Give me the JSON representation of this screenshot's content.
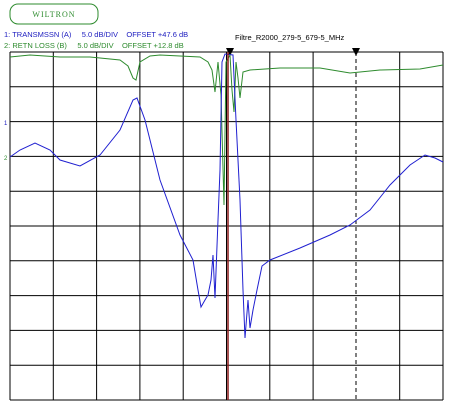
{
  "header": {
    "logo": "WILTRON",
    "trace1": "1: TRANSMSSN (A)     5.0 dB/DIV    OFFSET +47.6 dB",
    "trace2": "2: RETN LOSS (B)     5.0 dB/DIV    OFFSET +12.8 dB",
    "title": "Filtre_R2000_279-5_679-5_MHz"
  },
  "markers": {
    "ref1": "1",
    "ref2": "2"
  }
}
